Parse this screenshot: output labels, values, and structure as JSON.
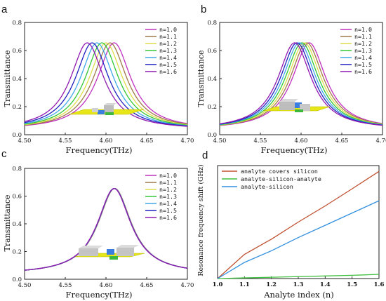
{
  "chart_data": [
    {
      "panel": "a",
      "type": "line",
      "xlabel": "Frequency(THz)",
      "ylabel": "Transmittance",
      "xlim": [
        4.5,
        4.7
      ],
      "ylim": [
        0.0,
        0.8
      ],
      "xticks": [
        "4.50",
        "4.55",
        "4.60",
        "4.65",
        "4.70"
      ],
      "yticks": [
        "0.0",
        "0.2",
        "0.4",
        "0.6",
        "0.8"
      ],
      "legend_position": "top-right",
      "series": [
        {
          "name": "n=1.0",
          "peak_x": 4.61,
          "peak_y": 0.655,
          "width": 0.05
        },
        {
          "name": "n=1.1",
          "peak_x": 4.605,
          "peak_y": 0.655,
          "width": 0.05
        },
        {
          "name": "n=1.2",
          "peak_x": 4.6,
          "peak_y": 0.655,
          "width": 0.05
        },
        {
          "name": "n=1.3",
          "peak_x": 4.595,
          "peak_y": 0.655,
          "width": 0.05
        },
        {
          "name": "n=1.4",
          "peak_x": 4.589,
          "peak_y": 0.655,
          "width": 0.05
        },
        {
          "name": "n=1.5",
          "peak_x": 4.583,
          "peak_y": 0.655,
          "width": 0.05
        },
        {
          "name": "n=1.6",
          "peak_x": 4.577,
          "peak_y": 0.655,
          "width": 0.05
        }
      ]
    },
    {
      "panel": "b",
      "type": "line",
      "xlabel": "Frequency(THz)",
      "ylabel": "Transmittance",
      "xlim": [
        4.5,
        4.7
      ],
      "ylim": [
        0.0,
        0.8
      ],
      "xticks": [
        "4.50",
        "4.55",
        "4.60",
        "4.65",
        "4.70"
      ],
      "yticks": [
        "0.0",
        "0.2",
        "0.4",
        "0.6",
        "0.8"
      ],
      "legend_position": "top-right",
      "series": [
        {
          "name": "n=1.0",
          "peak_x": 4.61,
          "peak_y": 0.655,
          "width": 0.05
        },
        {
          "name": "n=1.1",
          "peak_x": 4.607,
          "peak_y": 0.655,
          "width": 0.05
        },
        {
          "name": "n=1.2",
          "peak_x": 4.604,
          "peak_y": 0.655,
          "width": 0.05
        },
        {
          "name": "n=1.3",
          "peak_x": 4.601,
          "peak_y": 0.655,
          "width": 0.05
        },
        {
          "name": "n=1.4",
          "peak_x": 4.598,
          "peak_y": 0.655,
          "width": 0.05
        },
        {
          "name": "n=1.5",
          "peak_x": 4.595,
          "peak_y": 0.655,
          "width": 0.05
        },
        {
          "name": "n=1.6",
          "peak_x": 4.592,
          "peak_y": 0.655,
          "width": 0.05
        }
      ]
    },
    {
      "panel": "c",
      "type": "line",
      "xlabel": "Frequency(THz)",
      "ylabel": "Transmittance",
      "xlim": [
        4.5,
        4.7
      ],
      "ylim": [
        0.0,
        0.8
      ],
      "xticks": [
        "4.50",
        "4.55",
        "4.60",
        "4.65",
        "4.70"
      ],
      "yticks": [
        "0.0",
        "0.2",
        "0.4",
        "0.6",
        "0.8"
      ],
      "legend_position": "top-right",
      "series": [
        {
          "name": "n=1.0",
          "peak_x": 4.6108,
          "peak_y": 0.655,
          "width": 0.05
        },
        {
          "name": "n=1.1",
          "peak_x": 4.6107,
          "peak_y": 0.655,
          "width": 0.05
        },
        {
          "name": "n=1.2",
          "peak_x": 4.6105,
          "peak_y": 0.655,
          "width": 0.05
        },
        {
          "name": "n=1.3",
          "peak_x": 4.6104,
          "peak_y": 0.655,
          "width": 0.05
        },
        {
          "name": "n=1.4",
          "peak_x": 4.6103,
          "peak_y": 0.655,
          "width": 0.05
        },
        {
          "name": "n=1.5",
          "peak_x": 4.6101,
          "peak_y": 0.655,
          "width": 0.05
        },
        {
          "name": "n=1.6",
          "peak_x": 4.61,
          "peak_y": 0.655,
          "width": 0.05
        }
      ]
    },
    {
      "panel": "d",
      "type": "line",
      "xlabel": "Analyte index (n)",
      "ylabel": "Resonance frequency shift (GHz)",
      "xlim": [
        1.0,
        1.6
      ],
      "ylim": [
        0,
        35
      ],
      "xticks": [
        "1.0",
        "1.1",
        "1.2",
        "1.3",
        "1.4",
        "1.5",
        "1.6"
      ],
      "yticks": [],
      "legend_position": "top-left",
      "x": [
        1.0,
        1.1,
        1.2,
        1.3,
        1.4,
        1.5,
        1.6
      ],
      "series": [
        {
          "name": "analyte covers silicon",
          "values": [
            0,
            7.5,
            12.2,
            17.5,
            22.5,
            27.8,
            33.2
          ]
        },
        {
          "name": "analyte-silicon-analyte",
          "values": [
            0,
            0.2,
            0.4,
            0.6,
            0.8,
            1.0,
            1.3
          ]
        },
        {
          "name": "analyte-silicon",
          "values": [
            0,
            5.0,
            8.6,
            12.7,
            16.5,
            20.3,
            24.1
          ]
        }
      ]
    }
  ],
  "colors": {
    "n_series": [
      "#c030c0",
      "#a07848",
      "#dede4a",
      "#32c832",
      "#3fa8e8",
      "#2020c0",
      "#9018b0"
    ],
    "d_series": [
      "#c05030",
      "#40c040",
      "#3090e0"
    ],
    "inset_plate": "#e6e619",
    "inset_block_gray": "#bdbdbd",
    "inset_block_blue": "#3a7fe0",
    "inset_block_green": "#3cb83c"
  }
}
